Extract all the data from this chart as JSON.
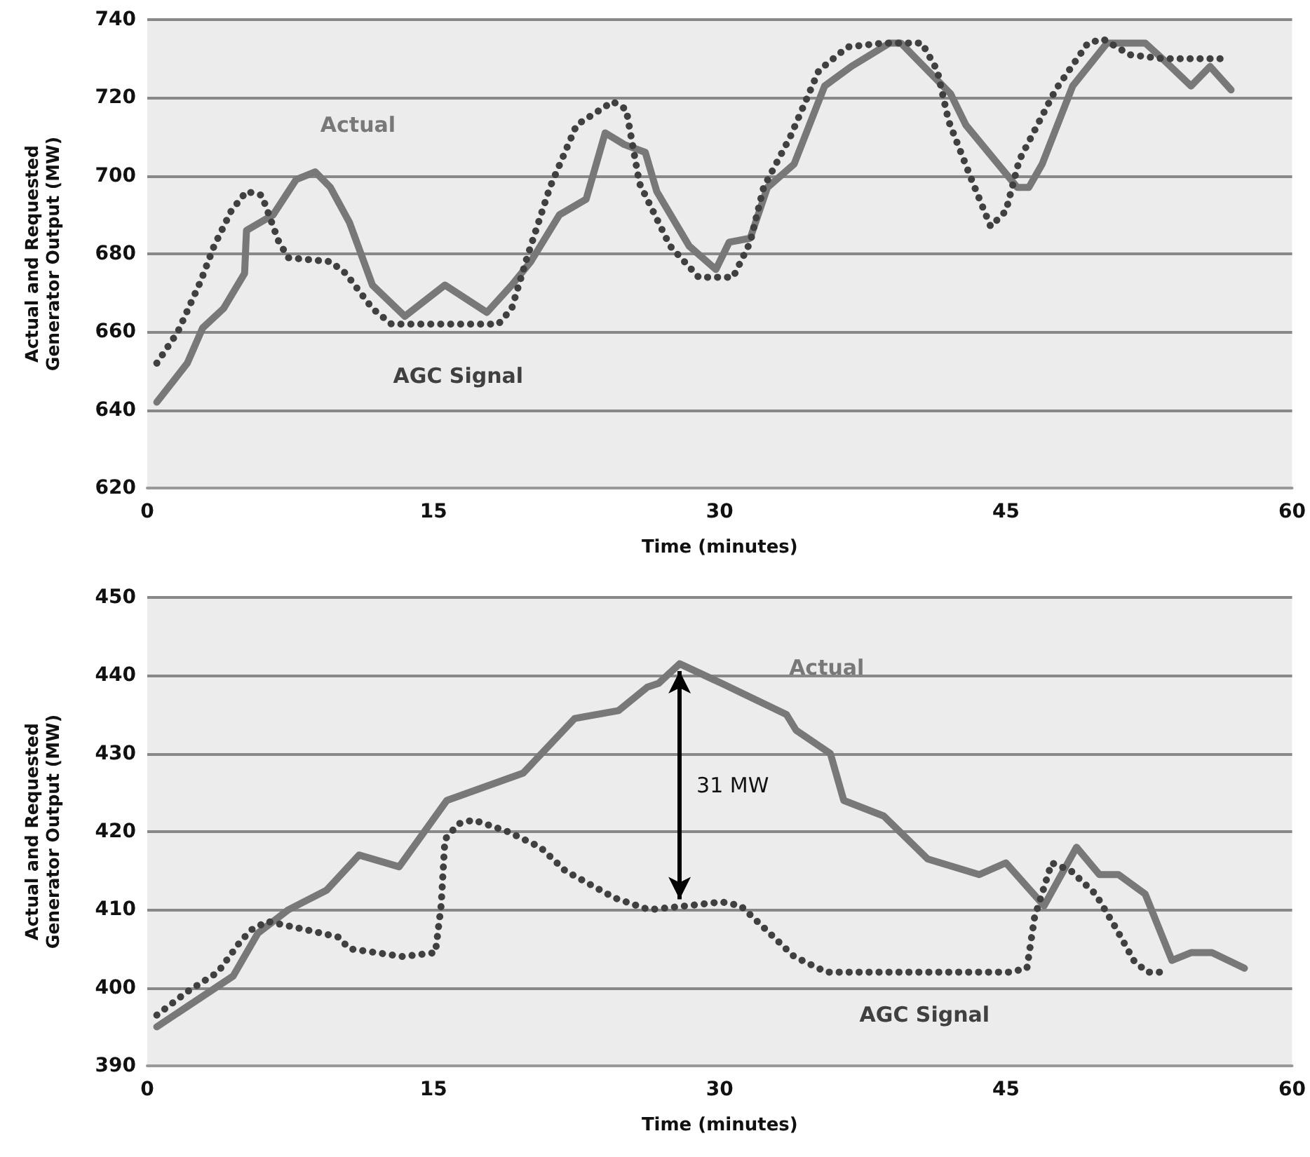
{
  "chart_data": [
    {
      "type": "line",
      "xlabel": "Time (minutes)",
      "ylabel": "Actual and Requested Generator Output (MW)",
      "xlim": [
        0,
        60
      ],
      "xticks": [
        0,
        15,
        30,
        45,
        60
      ],
      "ylim": [
        620,
        740
      ],
      "yticks": [
        620,
        640,
        660,
        680,
        700,
        720,
        740
      ],
      "grid": "y",
      "legend": false,
      "marker": "none",
      "series": [
        {
          "name": "Actual",
          "color": "#787878",
          "line_style": "solid",
          "x": [
            0.5,
            2.1,
            2.9,
            4.0,
            5.1,
            5.2,
            6.6,
            7.8,
            8.8,
            9.6,
            10.6,
            11.8,
            13.5,
            15.6,
            17.8,
            19.1,
            20.1,
            21.6,
            23.0,
            24.0,
            25.0,
            26.1,
            26.7,
            28.4,
            29.8,
            30.5,
            31.6,
            32.5,
            33.9,
            35.5,
            36.9,
            38.9,
            39.5,
            40.3,
            42.1,
            42.9,
            45.6,
            46.2,
            46.9,
            48.5,
            50.3,
            52.3,
            53.2,
            54.7,
            55.7,
            56.8
          ],
          "values": [
            642,
            652,
            661,
            666,
            675,
            686,
            690,
            699,
            701,
            697,
            688,
            672,
            664,
            672,
            665,
            672,
            678,
            690,
            694,
            711,
            708,
            706,
            696,
            682,
            676,
            683,
            684,
            697,
            703,
            723,
            728,
            734,
            734,
            730,
            721,
            713,
            697,
            697,
            703,
            723,
            734,
            734,
            730,
            723,
            728,
            722
          ]
        },
        {
          "name": "AGC Signal",
          "color": "#404040",
          "line_style": "dotted",
          "x": [
            0.5,
            1.6,
            2.8,
            3.5,
            4.4,
            5.2,
            6.0,
            6.9,
            7.4,
            9.6,
            10.4,
            11.8,
            12.8,
            18.4,
            19.1,
            19.9,
            21.1,
            22.5,
            24.4,
            25.1,
            25.8,
            27.4,
            28.9,
            30.7,
            31.6,
            32.3,
            33.7,
            35.2,
            36.7,
            38.6,
            40.6,
            41.4,
            42.0,
            43.2,
            44.2,
            45.0,
            45.7,
            47.6,
            49.3,
            50.1,
            51.5,
            53.2,
            56.4
          ],
          "values": [
            652,
            660,
            673,
            682,
            691,
            696,
            695,
            683,
            679,
            678,
            675,
            666,
            662,
            662,
            666,
            679,
            697,
            713,
            719,
            717,
            698,
            682,
            674,
            674,
            683,
            697,
            710,
            727,
            733,
            734,
            734,
            727,
            714,
            699,
            687,
            691,
            704,
            722,
            734,
            735,
            731,
            730,
            730
          ]
        }
      ]
    },
    {
      "type": "line",
      "xlabel": "Time (minutes)",
      "ylabel": "Actual and Requested Generator Output (MW)",
      "xlim": [
        0,
        60
      ],
      "xticks": [
        0,
        15,
        30,
        45,
        60
      ],
      "ylim": [
        390,
        450
      ],
      "yticks": [
        390,
        400,
        410,
        420,
        430,
        440,
        450
      ],
      "grid": "y",
      "legend": false,
      "marker": "none",
      "annotations": [
        "31 MW"
      ],
      "series": [
        {
          "name": "Actual",
          "color": "#787878",
          "line_style": "solid",
          "x": [
            0.5,
            4.5,
            5.8,
            7.4,
            9.4,
            11.1,
            13.2,
            15.7,
            19.7,
            22.4,
            24.7,
            26.2,
            26.8,
            27.9,
            30.1,
            33.5,
            34.0,
            35.8,
            36.5,
            38.6,
            40.9,
            43.6,
            45.0,
            47.0,
            48.7,
            49.9,
            50.9,
            52.3,
            53.7,
            54.7,
            55.8,
            57.5
          ],
          "values": [
            395,
            401.5,
            407,
            410,
            412.5,
            417,
            415.5,
            424,
            427.5,
            434.5,
            435.5,
            438.5,
            439,
            441.5,
            439,
            435,
            433,
            430,
            424,
            422,
            416.5,
            414.5,
            416,
            410.5,
            418,
            414.5,
            414.5,
            412,
            403.5,
            404.5,
            404.5,
            402.5
          ]
        },
        {
          "name": "AGC Signal",
          "color": "#404040",
          "line_style": "dotted",
          "x": [
            0.5,
            2.1,
            3.7,
            4.9,
            5.5,
            6.3,
            8.2,
            10.0,
            10.6,
            13.4,
            15.1,
            15.4,
            15.6,
            16.3,
            17.1,
            18.9,
            20.6,
            21.9,
            24.5,
            26.3,
            28.3,
            30.1,
            31.1,
            32.4,
            33.9,
            35.6,
            45.2,
            46.1,
            46.5,
            47.4,
            48.4,
            49.7,
            50.8,
            51.7,
            52.4,
            53.4
          ],
          "values": [
            396.5,
            399.5,
            402,
            406,
            407.5,
            408.5,
            407.5,
            406.5,
            405,
            404,
            404.5,
            410.5,
            419,
            421,
            421.5,
            420,
            418,
            415,
            411.5,
            410,
            410.5,
            411,
            410.5,
            407.5,
            404,
            402,
            402,
            402.5,
            409,
            416,
            415,
            412,
            407.5,
            403.5,
            402,
            402
          ]
        }
      ]
    }
  ]
}
